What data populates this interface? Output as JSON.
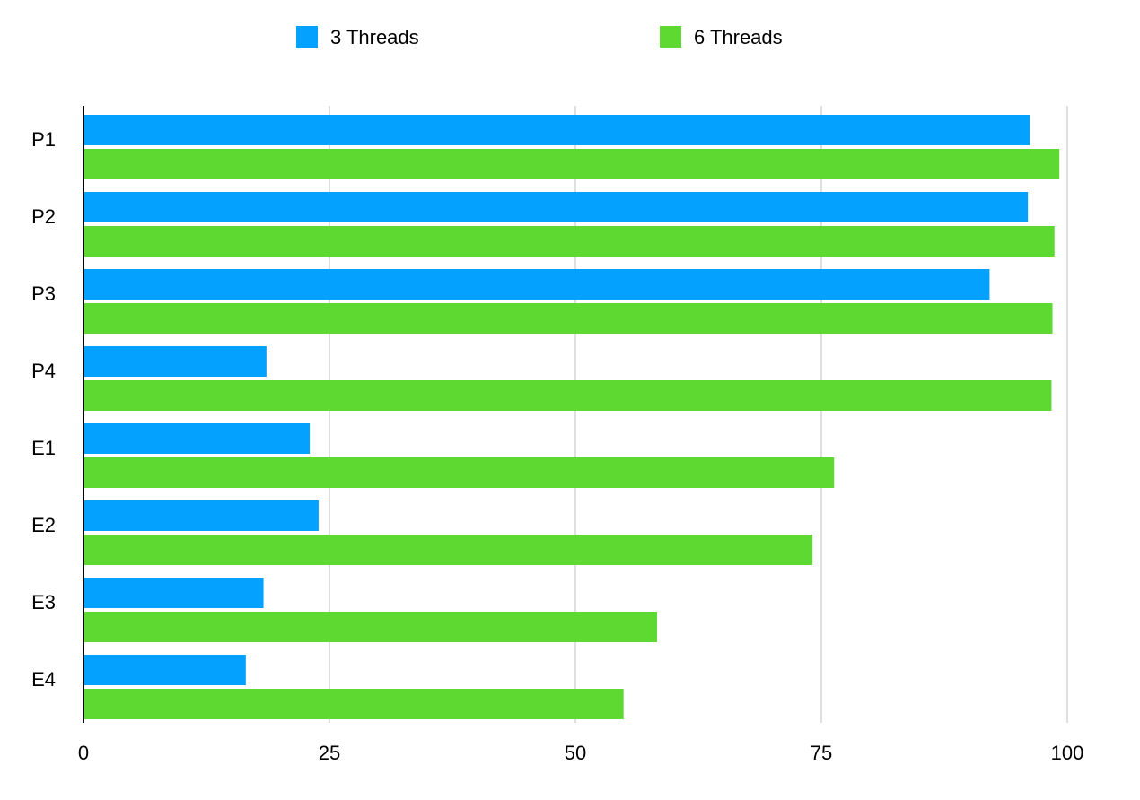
{
  "chart_data": {
    "type": "bar",
    "orientation": "horizontal",
    "title": "",
    "xlabel": "",
    "ylabel": "",
    "categories": [
      "P1",
      "P2",
      "P3",
      "P4",
      "E1",
      "E2",
      "E3",
      "E4"
    ],
    "series": [
      {
        "name": "3 Threads",
        "color": "#04a1ff",
        "values": [
          96.2,
          96.0,
          92.1,
          18.6,
          23.0,
          23.9,
          18.3,
          16.5
        ]
      },
      {
        "name": "6 Threads",
        "color": "#5ed932",
        "values": [
          99.2,
          98.7,
          98.5,
          98.4,
          76.3,
          74.1,
          58.3,
          54.9
        ]
      }
    ],
    "xlim": [
      0,
      100
    ],
    "x_ticks": [
      "0",
      "25",
      "50",
      "75",
      "100"
    ],
    "grid": "vertical",
    "legend_position": "top"
  }
}
